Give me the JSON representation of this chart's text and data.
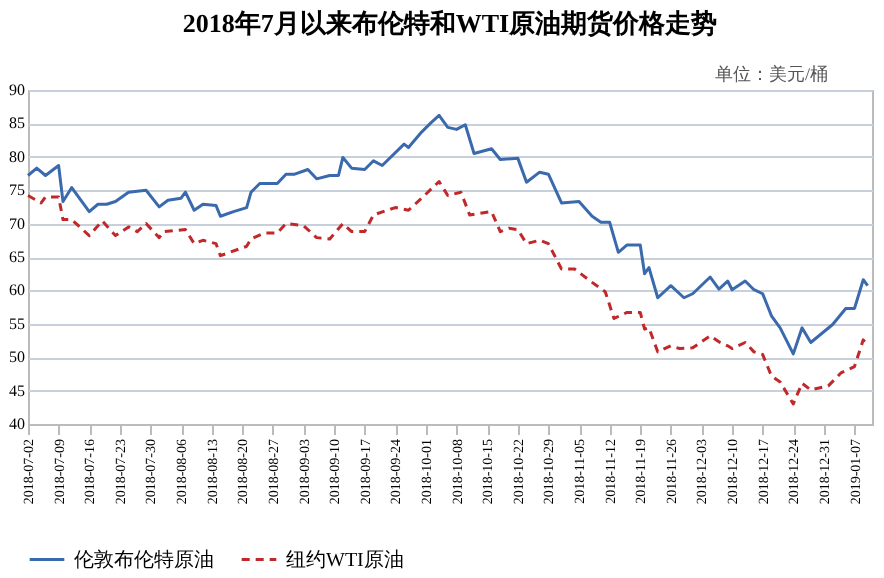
{
  "chart_data": {
    "type": "line",
    "title": "2018年7月以来布伦特和WTI原油期货价格走势",
    "annotations": [
      "单位：美元/桶"
    ],
    "xlim": [
      "2018-07-02",
      "2019-01-11"
    ],
    "xticks": [
      "2018-07-02",
      "2018-07-09",
      "2018-07-16",
      "2018-07-23",
      "2018-07-30",
      "2018-08-06",
      "2018-08-13",
      "2018-08-20",
      "2018-08-27",
      "2018-09-03",
      "2018-09-10",
      "2018-09-17",
      "2018-09-24",
      "2018-10-01",
      "2018-10-08",
      "2018-10-15",
      "2018-10-22",
      "2018-10-29",
      "2018-11-05",
      "2018-11-12",
      "2018-11-19",
      "2018-11-26",
      "2018-12-03",
      "2018-12-10",
      "2018-12-17",
      "2018-12-24",
      "2018-12-31",
      "2019-01-07"
    ],
    "ylim": [
      40,
      90
    ],
    "yticks": [
      40,
      45,
      50,
      55,
      60,
      65,
      70,
      75,
      80,
      85,
      90
    ],
    "grid": "y",
    "legend": "bottom",
    "marker": "none",
    "series": [
      {
        "name": "伦敦布伦特原油",
        "color": "#3a6aad",
        "line_style": "solid",
        "x": [
          "2018-07-02",
          "2018-07-04",
          "2018-07-06",
          "2018-07-09",
          "2018-07-10",
          "2018-07-12",
          "2018-07-16",
          "2018-07-18",
          "2018-07-20",
          "2018-07-22",
          "2018-07-25",
          "2018-07-29",
          "2018-08-01",
          "2018-08-03",
          "2018-08-06",
          "2018-08-07",
          "2018-08-09",
          "2018-08-11",
          "2018-08-14",
          "2018-08-15",
          "2018-08-18",
          "2018-08-21",
          "2018-08-22",
          "2018-08-24",
          "2018-08-28",
          "2018-08-30",
          "2018-09-01",
          "2018-09-04",
          "2018-09-06",
          "2018-09-09",
          "2018-09-11",
          "2018-09-12",
          "2018-09-14",
          "2018-09-17",
          "2018-09-19",
          "2018-09-21",
          "2018-09-26",
          "2018-09-27",
          "2018-09-30",
          "2018-10-02",
          "2018-10-04",
          "2018-10-06",
          "2018-10-08",
          "2018-10-10",
          "2018-10-12",
          "2018-10-16",
          "2018-10-18",
          "2018-10-22",
          "2018-10-24",
          "2018-10-27",
          "2018-10-29",
          "2018-11-01",
          "2018-11-05",
          "2018-11-08",
          "2018-11-10",
          "2018-11-12",
          "2018-11-14",
          "2018-11-16",
          "2018-11-19",
          "2018-11-20",
          "2018-11-21",
          "2018-11-23",
          "2018-11-26",
          "2018-11-29",
          "2018-12-01",
          "2018-12-05",
          "2018-12-07",
          "2018-12-09",
          "2018-12-10",
          "2018-12-13",
          "2018-12-15",
          "2018-12-17",
          "2018-12-19",
          "2018-12-21",
          "2018-12-24",
          "2018-12-26",
          "2018-12-28",
          "2019-01-02",
          "2019-01-05",
          "2019-01-07",
          "2019-01-09",
          "2019-01-10"
        ],
        "values": [
          77.2,
          78.3,
          77.2,
          78.7,
          73.3,
          75.4,
          71.8,
          72.9,
          72.9,
          73.3,
          74.7,
          75.0,
          72.5,
          73.5,
          73.8,
          74.7,
          72.0,
          72.9,
          72.7,
          71.1,
          71.8,
          72.4,
          74.7,
          76.0,
          76.0,
          77.4,
          77.4,
          78.1,
          76.7,
          77.2,
          77.2,
          79.9,
          78.3,
          78.1,
          79.4,
          78.7,
          81.9,
          81.4,
          83.7,
          85.0,
          86.2,
          84.4,
          84.1,
          84.8,
          80.5,
          81.2,
          79.6,
          79.8,
          76.2,
          77.7,
          77.4,
          73.1,
          73.3,
          71.1,
          70.2,
          70.2,
          65.7,
          66.8,
          66.8,
          62.5,
          63.4,
          58.9,
          60.7,
          58.9,
          59.5,
          62.0,
          60.2,
          61.4,
          60.1,
          61.4,
          60.1,
          59.5,
          56.2,
          54.4,
          50.5,
          54.4,
          52.2,
          54.9,
          57.3,
          57.3,
          61.6,
          60.7
        ]
      },
      {
        "name": "纽约WTI原油",
        "color": "#c0282a",
        "line_style": "dashed",
        "x": [
          "2018-07-02",
          "2018-07-05",
          "2018-07-06",
          "2018-07-09",
          "2018-07-10",
          "2018-07-12",
          "2018-07-16",
          "2018-07-19",
          "2018-07-22",
          "2018-07-25",
          "2018-07-27",
          "2018-07-29",
          "2018-08-01",
          "2018-08-02",
          "2018-08-07",
          "2018-08-09",
          "2018-08-11",
          "2018-08-14",
          "2018-08-15",
          "2018-08-21",
          "2018-08-22",
          "2018-08-25",
          "2018-08-28",
          "2018-08-30",
          "2018-09-03",
          "2018-09-06",
          "2018-09-09",
          "2018-09-12",
          "2018-09-14",
          "2018-09-17",
          "2018-09-19",
          "2018-09-24",
          "2018-09-27",
          "2018-09-30",
          "2018-10-04",
          "2018-10-06",
          "2018-10-09",
          "2018-10-11",
          "2018-10-16",
          "2018-10-18",
          "2018-10-20",
          "2018-10-22",
          "2018-10-24",
          "2018-10-27",
          "2018-10-29",
          "2018-11-01",
          "2018-11-04",
          "2018-11-08",
          "2018-11-11",
          "2018-11-13",
          "2018-11-16",
          "2018-11-19",
          "2018-11-20",
          "2018-11-21",
          "2018-11-23",
          "2018-11-26",
          "2018-11-28",
          "2018-12-01",
          "2018-12-05",
          "2018-12-07",
          "2018-12-09",
          "2018-12-10",
          "2018-12-13",
          "2018-12-15",
          "2018-12-17",
          "2018-12-19",
          "2018-12-21",
          "2018-12-24",
          "2018-12-26",
          "2018-12-28",
          "2019-01-01",
          "2019-01-04",
          "2019-01-07",
          "2019-01-09",
          "2019-01-10"
        ],
        "values": [
          74.2,
          73.1,
          74.0,
          74.0,
          70.6,
          70.6,
          68.2,
          70.4,
          68.2,
          69.5,
          68.8,
          70.0,
          67.9,
          68.8,
          69.1,
          67.0,
          67.5,
          67.0,
          65.2,
          66.6,
          67.7,
          68.6,
          68.6,
          70.0,
          69.7,
          67.9,
          67.7,
          70.0,
          68.8,
          68.8,
          71.3,
          72.4,
          72.0,
          73.8,
          76.3,
          74.2,
          74.7,
          71.3,
          71.8,
          68.8,
          69.3,
          69.1,
          67.0,
          67.5,
          67.0,
          63.2,
          63.2,
          61.2,
          59.8,
          55.8,
          56.7,
          56.7,
          54.2,
          54.4,
          50.8,
          51.7,
          51.3,
          51.4,
          53.2,
          52.3,
          51.7,
          51.3,
          52.2,
          50.8,
          50.4,
          47.2,
          46.3,
          43.0,
          46.1,
          45.1,
          45.7,
          47.7,
          48.6,
          52.6,
          51.7
        ]
      }
    ]
  }
}
